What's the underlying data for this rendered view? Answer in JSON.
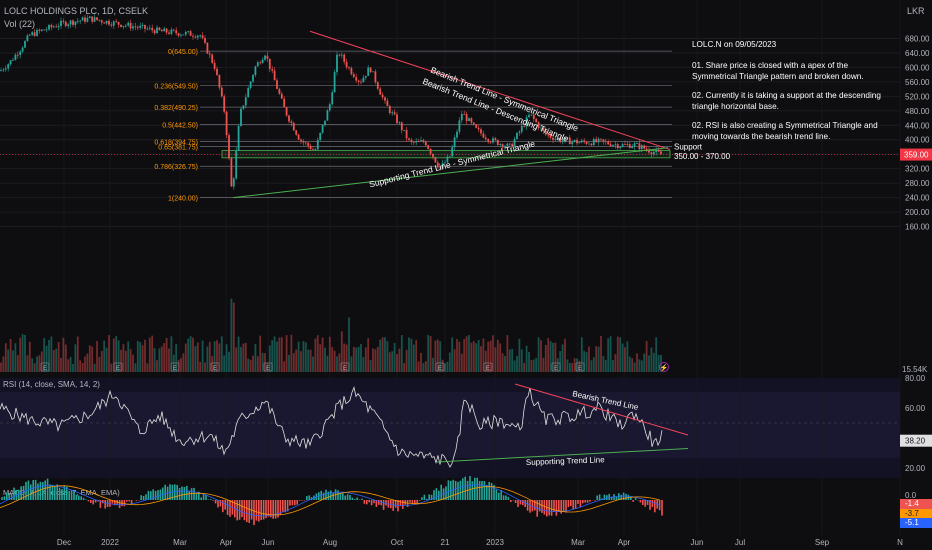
{
  "header": {
    "symbol_line": "LOLC HOLDINGS PLC, 1D, CSELK",
    "vol_label": "Vol (22)",
    "currency": "LKR"
  },
  "annotation": {
    "title": "LOLC.N on 09/05/2023",
    "line1": "01. Share price is closed with a apex of the Symmetrical Triangle pattern and broken down.",
    "line2": "02. Currently it is taking a support at the descending triangle horizontal base.",
    "line3": "02. RSI is also creating a Symmetrical Triangle and moving towards the bearish trend line."
  },
  "chart_data": {
    "type": "candlestick",
    "x_ticks": [
      "Dec",
      "2022",
      "Mar",
      "Apr",
      "Jun",
      "Aug",
      "Oct",
      "21",
      "2023",
      "Mar",
      "Apr",
      "Jun",
      "Jul",
      "Sep",
      "N"
    ],
    "price_axis": [
      "680.00",
      "640.00",
      "600.00",
      "560.00",
      "520.00",
      "480.00",
      "440.00",
      "400.00",
      "360.00",
      "320.00",
      "280.00",
      "240.00",
      "200.00",
      "160.00"
    ],
    "ylim": [
      150,
      700
    ],
    "last_price": "359.00",
    "volume_label": "15.54K",
    "fib_levels": [
      {
        "label": "0(645.00)",
        "value": 645.0
      },
      {
        "label": "0.236(549.50)",
        "value": 549.5
      },
      {
        "label": "0.382(490.25)",
        "value": 490.25
      },
      {
        "label": "0.5(442.50)",
        "value": 442.5
      },
      {
        "label": "0.618(394.75)",
        "value": 394.75
      },
      {
        "label": "0.65(381.75)",
        "value": 381.75
      },
      {
        "label": "0.786(326.75)",
        "value": 326.75
      },
      {
        "label": "1(240.00)",
        "value": 240.0
      }
    ],
    "support_zone": {
      "label": "Support",
      "range": "350.00 - 370.00",
      "low": 350,
      "high": 370
    },
    "trend_lines": [
      {
        "label": "Bearish Trend Line - Symmetrical Triangle",
        "color": "#f2435a"
      },
      {
        "label": "Bearish Trend Line - Descending Triangle",
        "color": "#f2435a"
      },
      {
        "label": "Supporting Trend Line - Symmetrical Triangle",
        "color": "#4caf50"
      }
    ],
    "rsi": {
      "label": "RSI (14, close, SMA, 14, 2)",
      "axis": [
        "80.00",
        "60.00",
        "20.00"
      ],
      "value": "38.20",
      "bearish_line": "Bearish Trend Line",
      "support_line": "Supporting Trend Line"
    },
    "macd": {
      "label": "MACD (7, 14, close, 7, EMA, EMA)",
      "axis": [
        "0.0",
        "-1.4",
        "-3.7",
        "-5.1"
      ],
      "colors": {
        "hist_pos": "#26a69a",
        "hist_neg": "#ef5350",
        "macd": "#2962ff",
        "signal": "#ff9800"
      }
    },
    "colors": {
      "up": "#26a69a",
      "down": "#ef5350",
      "bearish": "#f2435a",
      "support": "#4caf50",
      "fib": "#ff9800",
      "price_badge": "#f23645"
    }
  }
}
